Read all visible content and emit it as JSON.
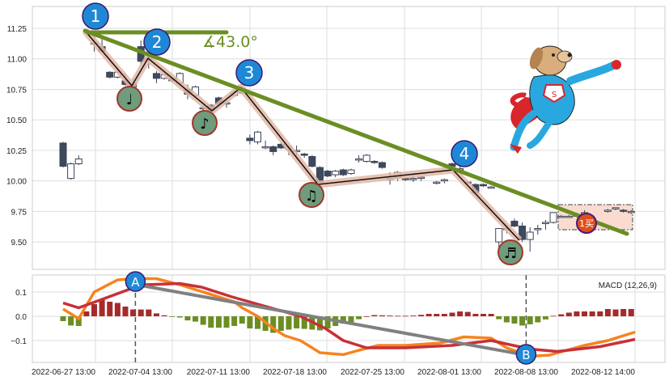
{
  "chart_data": [
    {
      "type": "candlestick",
      "title": "",
      "ylim": [
        9.3,
        11.43
      ],
      "y_ticks": [
        "11.25",
        "11.00",
        "10.75",
        "10.50",
        "10.25",
        "10.00",
        "9.75",
        "9.50"
      ],
      "grid": true,
      "candle_fields": [
        "bar",
        "open",
        "high",
        "low",
        "close"
      ],
      "candles": [
        [
          0,
          10.31,
          10.32,
          10.11,
          10.12
        ],
        [
          1,
          10.02,
          10.15,
          10.01,
          10.14
        ],
        [
          2,
          10.14,
          10.21,
          10.13,
          10.18
        ],
        [
          4,
          11.13,
          11.2,
          11.06,
          11.12
        ],
        [
          5,
          11.1,
          11.16,
          11.05,
          11.06
        ],
        [
          6,
          10.89,
          10.9,
          10.84,
          10.85
        ],
        [
          7,
          10.85,
          10.93,
          10.84,
          10.89
        ],
        [
          8,
          10.82,
          10.88,
          10.78,
          10.79
        ],
        [
          9,
          10.8,
          10.84,
          10.74,
          10.77
        ],
        [
          10,
          11.1,
          11.15,
          10.94,
          10.98
        ],
        [
          11,
          11.0,
          11.02,
          10.92,
          11.0
        ],
        [
          12,
          10.88,
          10.9,
          10.8,
          10.84
        ],
        [
          13,
          10.84,
          10.88,
          10.83,
          10.87
        ],
        [
          14,
          10.84,
          10.86,
          10.81,
          10.82
        ],
        [
          15,
          10.8,
          10.89,
          10.79,
          10.88
        ],
        [
          16,
          10.75,
          10.79,
          10.67,
          10.71
        ],
        [
          17,
          10.7,
          10.78,
          10.69,
          10.77
        ],
        [
          18,
          10.6,
          10.62,
          10.57,
          10.6
        ],
        [
          19,
          10.62,
          10.63,
          10.57,
          10.58
        ],
        [
          20,
          10.68,
          10.69,
          10.62,
          10.63
        ],
        [
          21,
          10.64,
          10.66,
          10.6,
          10.64
        ],
        [
          22,
          10.7,
          10.74,
          10.69,
          10.73
        ],
        [
          23,
          10.72,
          10.76,
          10.71,
          10.74
        ],
        [
          24,
          10.35,
          10.38,
          10.3,
          10.33
        ],
        [
          25,
          10.32,
          10.41,
          10.3,
          10.4
        ],
        [
          26,
          10.28,
          10.33,
          10.26,
          10.28
        ],
        [
          27,
          10.28,
          10.29,
          10.21,
          10.24
        ],
        [
          28,
          10.3,
          10.31,
          10.26,
          10.27
        ],
        [
          29,
          10.26,
          10.29,
          10.21,
          10.28
        ],
        [
          30,
          10.25,
          10.29,
          10.2,
          10.25
        ],
        [
          31,
          10.22,
          10.23,
          10.19,
          10.21
        ],
        [
          32,
          10.2,
          10.21,
          10.11,
          10.12
        ],
        [
          33,
          10.11,
          10.12,
          9.98,
          9.99
        ],
        [
          34,
          10.08,
          10.09,
          10.03,
          10.04
        ],
        [
          35,
          10.05,
          10.09,
          10.03,
          10.08
        ],
        [
          36,
          10.09,
          10.1,
          10.04,
          10.05
        ],
        [
          37,
          10.06,
          10.1,
          10.05,
          10.09
        ],
        [
          38,
          10.18,
          10.21,
          10.15,
          10.18
        ],
        [
          39,
          10.16,
          10.22,
          10.15,
          10.21
        ],
        [
          40,
          10.16,
          10.17,
          10.14,
          10.15
        ],
        [
          41,
          10.15,
          10.16,
          10.1,
          10.11
        ],
        [
          42,
          10.02,
          10.07,
          9.97,
          10.02
        ],
        [
          43,
          10.03,
          10.08,
          10.0,
          10.07
        ],
        [
          44,
          10.02,
          10.03,
          10.0,
          10.01
        ],
        [
          45,
          10.02,
          10.05,
          9.99,
          10.02
        ],
        [
          46,
          10.02,
          10.04,
          10.0,
          10.03
        ],
        [
          48,
          9.99,
          10.0,
          9.97,
          9.99
        ],
        [
          49,
          10.0,
          10.02,
          9.98,
          10.01
        ],
        [
          50,
          10.14,
          10.15,
          10.12,
          10.12
        ],
        [
          51,
          10.1,
          10.12,
          10.07,
          10.1
        ],
        [
          52,
          9.99,
          10.0,
          9.97,
          9.98
        ],
        [
          53,
          9.97,
          9.98,
          9.89,
          9.9
        ],
        [
          54,
          9.97,
          9.98,
          9.95,
          9.96
        ],
        [
          55,
          9.95,
          9.96,
          9.94,
          9.95
        ],
        [
          56,
          9.5,
          9.61,
          9.42,
          9.61
        ],
        [
          57,
          9.61,
          9.64,
          9.57,
          9.61
        ],
        [
          58,
          9.67,
          9.69,
          9.62,
          9.63
        ],
        [
          59,
          9.63,
          9.66,
          9.5,
          9.52
        ],
        [
          60,
          9.52,
          9.62,
          9.42,
          9.58
        ],
        [
          61,
          9.6,
          9.64,
          9.56,
          9.61
        ],
        [
          62,
          9.65,
          9.68,
          9.6,
          9.66
        ],
        [
          63,
          9.66,
          9.74,
          9.65,
          9.74
        ],
        [
          64,
          9.71,
          9.72,
          9.7,
          9.71
        ],
        [
          65,
          9.71,
          9.72,
          9.7,
          9.71
        ],
        [
          66,
          9.72,
          9.74,
          9.7,
          9.72
        ],
        [
          67,
          9.74,
          9.76,
          9.7,
          9.74
        ],
        [
          70,
          9.75,
          9.77,
          9.74,
          9.76
        ],
        [
          71,
          9.77,
          9.78,
          9.76,
          9.78
        ],
        [
          72,
          9.76,
          9.77,
          9.74,
          9.75
        ],
        [
          73,
          9.74,
          9.76,
          9.73,
          9.75
        ]
      ],
      "up_color": "#ffffff",
      "down_color": "#3d4a5c",
      "annotations": {
        "peaks": [
          "1",
          "2",
          "3",
          "4"
        ],
        "troughs": [
          "♩",
          "♪",
          "♫",
          "♬"
        ],
        "angle_label": "∡43.0°",
        "signal_label": "1买",
        "trendline_color": "#6b8e23",
        "zigzag_halo_color": "#e3b7a6",
        "peak_color": "#1e88d6",
        "trough_color": "#6f9c7c",
        "signal_color": "#e04e1a"
      }
    },
    {
      "type": "bar+line",
      "title": "",
      "legend_text": "MACD (12,26,9)",
      "ylim": [
        -0.19,
        0.175
      ],
      "y_ticks": [
        "0.1",
        "0.0",
        "−0.1"
      ],
      "x_ticks": [
        "2022-06-27 13:00",
        "2022-07-04 13:00",
        "2022-07-11 13:00",
        "2022-07-18 13:00",
        "2022-07-25 13:00",
        "2022-08-01 13:00",
        "2022-08-08 13:00",
        "2022-08-12 14:00"
      ],
      "histogram": [
        -0.02,
        -0.038,
        -0.04,
        0.02,
        0.05,
        0.07,
        0.06,
        0.055,
        0.04,
        0.028,
        0.028,
        0.028,
        0.012,
        0.004,
        -0.002,
        -0.005,
        -0.017,
        -0.022,
        -0.035,
        -0.047,
        -0.047,
        -0.047,
        -0.04,
        -0.03,
        -0.05,
        -0.052,
        -0.06,
        -0.068,
        -0.06,
        -0.055,
        -0.05,
        -0.052,
        -0.055,
        -0.058,
        -0.05,
        -0.04,
        -0.03,
        -0.025,
        -0.012,
        0.0,
        0.005,
        0.004,
        0.003,
        0.002,
        0.002,
        0.003,
        0.006,
        0.01,
        0.01,
        0.01,
        0.015,
        0.02,
        0.018,
        0.01,
        0.01,
        0.01,
        -0.012,
        -0.025,
        -0.03,
        -0.038,
        -0.033,
        -0.025,
        -0.013,
        0.002,
        0.008,
        0.015,
        0.02,
        0.02,
        0.02,
        0.02,
        0.03,
        0.028,
        0.03,
        0.03
      ],
      "series": [
        {
          "color": "#f5841f",
          "points": [
            [
              0,
              0.03
            ],
            [
              2,
              -0.01
            ],
            [
              4,
              0.1
            ],
            [
              7,
              0.15
            ],
            [
              9,
              0.155
            ],
            [
              12,
              0.155
            ],
            [
              15,
              0.13
            ],
            [
              18,
              0.1
            ],
            [
              22,
              0.06
            ],
            [
              23,
              0.035
            ],
            [
              25,
              0.0
            ],
            [
              27,
              -0.05
            ],
            [
              28.5,
              -0.08
            ],
            [
              30.5,
              -0.1
            ],
            [
              33,
              -0.15
            ],
            [
              36,
              -0.158
            ],
            [
              38,
              -0.14
            ],
            [
              40.5,
              -0.12
            ],
            [
              44,
              -0.12
            ],
            [
              48.5,
              -0.11
            ],
            [
              51.5,
              -0.085
            ],
            [
              55,
              -0.09
            ],
            [
              57,
              -0.13
            ],
            [
              60,
              -0.165
            ],
            [
              62.5,
              -0.16
            ],
            [
              64.7,
              -0.14
            ],
            [
              67,
              -0.12
            ],
            [
              70,
              -0.1
            ],
            [
              73.5,
              -0.065
            ]
          ]
        },
        {
          "color": "#c8303a",
          "points": [
            [
              0,
              0.055
            ],
            [
              2,
              0.035
            ],
            [
              4.6,
              0.065
            ],
            [
              8.4,
              0.11
            ],
            [
              10.6,
              0.13
            ],
            [
              15,
              0.135
            ],
            [
              17.8,
              0.12
            ],
            [
              21.7,
              0.08
            ],
            [
              25,
              0.05
            ],
            [
              30.5,
              0.0
            ],
            [
              33.7,
              -0.05
            ],
            [
              36,
              -0.1
            ],
            [
              39,
              -0.13
            ],
            [
              44,
              -0.13
            ],
            [
              50,
              -0.12
            ],
            [
              55,
              -0.1
            ],
            [
              60,
              -0.135
            ],
            [
              63.5,
              -0.145
            ],
            [
              69,
              -0.125
            ],
            [
              73.5,
              -0.095
            ]
          ]
        }
      ],
      "divergence": {
        "labels": [
          "A",
          "B"
        ],
        "points": [
          [
            9.5,
            0.13
          ],
          [
            59.5,
            -0.16
          ]
        ],
        "color": "#808080"
      },
      "pos_color": "#a52a2a",
      "neg_color": "#6b8e23"
    }
  ]
}
